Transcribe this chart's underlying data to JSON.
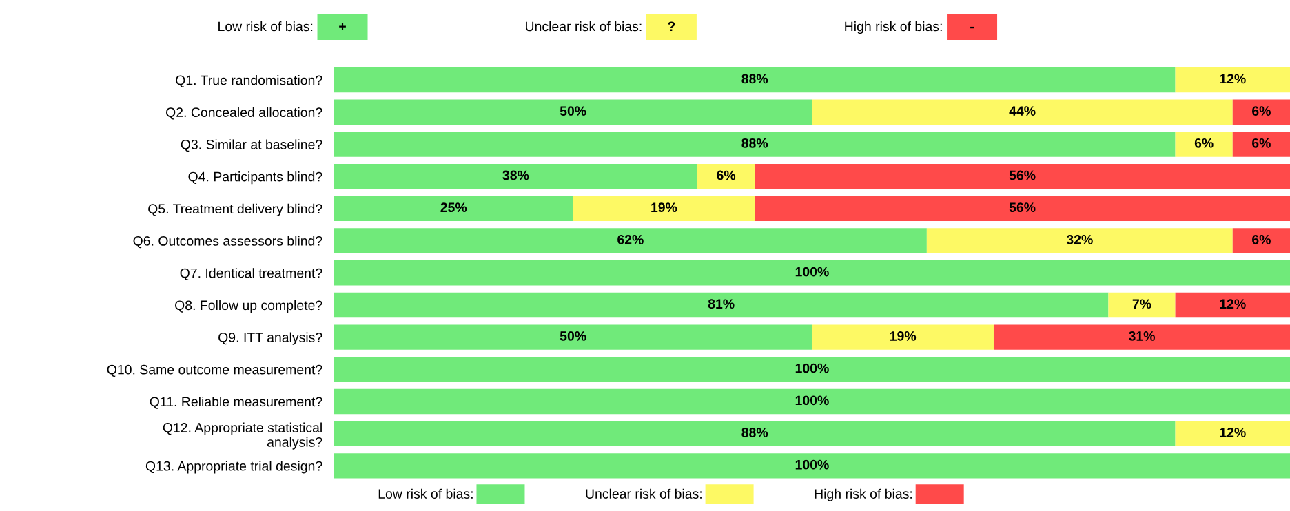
{
  "chart_data": {
    "type": "bar",
    "orientation": "horizontal",
    "stacked": true,
    "legend": "top",
    "categories": [
      "Q1. True randomisation?",
      "Q2. Concealed allocation?",
      "Q3. Similar at baseline?",
      "Q4. Participants blind?",
      "Q5. Treatment delivery blind?",
      "Q6. Outcomes assessors blind?",
      "Q7. Identical treatment?",
      "Q8. Follow up complete?",
      "Q9. ITT analysis?",
      "Q10. Same outcome measurement?",
      "Q11. Reliable measurement?",
      "Q12. Appropriate statistical\nanalysis?",
      "Q13. Appropriate trial design?"
    ],
    "series": [
      {
        "name": "Low risk of bias:",
        "color": "#70ea7a",
        "values": [
          88,
          50,
          88,
          38,
          25,
          62,
          100,
          81,
          50,
          100,
          100,
          88,
          100
        ],
        "value_labels": [
          "88%",
          "50%",
          "88%",
          "38%",
          "25%",
          "62%",
          "100%",
          "81%",
          "50%",
          "100%",
          "100%",
          "88%",
          "100%"
        ]
      },
      {
        "name": "Unclear risk of bias:",
        "color": "#fdf964",
        "values": [
          12,
          44,
          6,
          6,
          19,
          32,
          0,
          7,
          19,
          0,
          0,
          12,
          0
        ],
        "value_labels": [
          "12%",
          "44%",
          "6%",
          "6%",
          "19%",
          "32%",
          null,
          "7%",
          "19%",
          null,
          null,
          "12%",
          null
        ]
      },
      {
        "name": "High risk of bias:",
        "color": "#ff4a4a",
        "values": [
          0,
          6,
          6,
          56,
          56,
          6,
          0,
          12,
          31,
          0,
          0,
          0,
          0
        ],
        "value_labels": [
          null,
          "6%",
          "6%",
          "56%",
          "56%",
          "6%",
          null,
          "12%",
          "31%",
          null,
          null,
          null,
          null
        ]
      }
    ],
    "annotations": [
      "+",
      "?",
      "-"
    ]
  }
}
